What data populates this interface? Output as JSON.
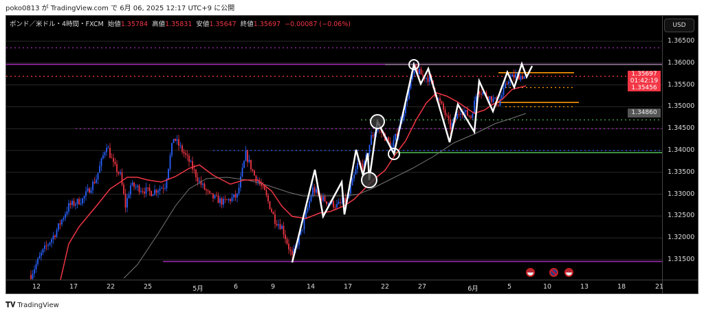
{
  "published": "poko0813 が TradingView.com で 6月 06, 2025 12:17 UTC+9 に公開",
  "legend": {
    "symbol": "ポンド／米ドル・4時間・FXCM",
    "open_label": "始値",
    "open": "1.35784",
    "high_label": "高値",
    "high": "1.35831",
    "low_label": "安値",
    "low": "1.35647",
    "close_label": "終値",
    "close": "1.35697",
    "change": "−0.00087 (−0.06%)"
  },
  "currency_button": "USD",
  "price_tag": {
    "price": "1.35697",
    "countdown": "01:42:19",
    "ma": "1.35456"
  },
  "ma_tag": "1.34860",
  "footer_logo": "TradingView",
  "colors": {
    "up": "#2962ff",
    "down": "#f23645",
    "ema": "#f23645",
    "sma": "#777777",
    "zigzag": "#ffffff",
    "purple": "#9c27b0",
    "orange": "#ff9800",
    "green": "#4caf50",
    "blue": "#2962ff"
  },
  "events": [
    "us-flag-icon",
    "uk-flag-icon",
    "us-flag-icon"
  ],
  "chart_data": {
    "type": "candlestick",
    "yaxis": {
      "min": 1.3115,
      "max": 1.3665,
      "ticks": [
        "1.36500",
        "1.36000",
        "1.35500",
        "1.35000",
        "1.34500",
        "1.34000",
        "1.33500",
        "1.33000",
        "1.32500",
        "1.32000",
        "1.31500"
      ]
    },
    "xaxis": {
      "ticks": [
        "12",
        "17",
        "22",
        "25",
        "5月",
        "6",
        "9",
        "14",
        "17",
        "22",
        "27",
        "6月",
        "5",
        "10",
        "13",
        "18",
        "21"
      ]
    },
    "grid": true,
    "price_path": [
      {
        "bar": 0,
        "price": 1.3115
      },
      {
        "bar": 6,
        "price": 1.3163
      },
      {
        "bar": 14,
        "price": 1.321
      },
      {
        "bar": 22,
        "price": 1.3273
      },
      {
        "bar": 30,
        "price": 1.3288
      },
      {
        "bar": 38,
        "price": 1.3336
      },
      {
        "bar": 44,
        "price": 1.3414
      },
      {
        "bar": 48,
        "price": 1.3367
      },
      {
        "bar": 52,
        "price": 1.3343
      },
      {
        "bar": 55,
        "price": 1.3273
      },
      {
        "bar": 58,
        "price": 1.332
      },
      {
        "bar": 64,
        "price": 1.3312
      },
      {
        "bar": 70,
        "price": 1.3304
      },
      {
        "bar": 78,
        "price": 1.332
      },
      {
        "bar": 83,
        "price": 1.343
      },
      {
        "bar": 87,
        "price": 1.3406
      },
      {
        "bar": 92,
        "price": 1.3375
      },
      {
        "bar": 98,
        "price": 1.3328
      },
      {
        "bar": 104,
        "price": 1.3296
      },
      {
        "bar": 112,
        "price": 1.3281
      },
      {
        "bar": 120,
        "price": 1.3296
      },
      {
        "bar": 125,
        "price": 1.3391
      },
      {
        "bar": 130,
        "price": 1.3343
      },
      {
        "bar": 136,
        "price": 1.3304
      },
      {
        "bar": 142,
        "price": 1.3241
      },
      {
        "bar": 146,
        "price": 1.3225
      },
      {
        "bar": 152,
        "price": 1.3155
      },
      {
        "bar": 158,
        "price": 1.3225
      },
      {
        "bar": 164,
        "price": 1.3312
      },
      {
        "bar": 170,
        "price": 1.3288
      },
      {
        "bar": 178,
        "price": 1.3273
      },
      {
        "bar": 184,
        "price": 1.3288
      },
      {
        "bar": 190,
        "price": 1.3367
      },
      {
        "bar": 194,
        "price": 1.3367
      },
      {
        "bar": 198,
        "price": 1.343
      },
      {
        "bar": 202,
        "price": 1.3453
      },
      {
        "bar": 206,
        "price": 1.343
      },
      {
        "bar": 210,
        "price": 1.3406
      },
      {
        "bar": 216,
        "price": 1.3477
      },
      {
        "bar": 220,
        "price": 1.354
      },
      {
        "bar": 223,
        "price": 1.3587
      },
      {
        "bar": 228,
        "price": 1.3571
      },
      {
        "bar": 232,
        "price": 1.3564
      },
      {
        "bar": 236,
        "price": 1.3524
      },
      {
        "bar": 240,
        "price": 1.3493
      },
      {
        "bar": 244,
        "price": 1.3453
      },
      {
        "bar": 250,
        "price": 1.3493
      },
      {
        "bar": 256,
        "price": 1.3477
      },
      {
        "bar": 260,
        "price": 1.354
      },
      {
        "bar": 266,
        "price": 1.3524
      },
      {
        "bar": 272,
        "price": 1.3508
      },
      {
        "bar": 278,
        "price": 1.3564
      },
      {
        "bar": 282,
        "price": 1.3571
      },
      {
        "bar": 287,
        "price": 1.35697
      }
    ],
    "levels": [
      {
        "price": 1.3635,
        "color": "purple",
        "style": "dotted"
      },
      {
        "price": 1.3597,
        "color": "purple",
        "style": "solid"
      },
      {
        "price": 1.35697,
        "color": "down",
        "style": "dotted"
      },
      {
        "price": 1.3578,
        "color": "orange",
        "style": "solid"
      },
      {
        "price": 1.3544,
        "color": "orange",
        "style": "dotted"
      },
      {
        "price": 1.351,
        "color": "orange",
        "style": "solid"
      },
      {
        "price": 1.35,
        "color": "orange",
        "style": "dotted"
      },
      {
        "price": 1.347,
        "color": "green",
        "style": "dotted"
      },
      {
        "price": 1.345,
        "color": "purple",
        "style": "dotted"
      },
      {
        "price": 1.34,
        "color": "blue",
        "style": "dotted"
      },
      {
        "price": 1.3395,
        "color": "green",
        "style": "solid"
      },
      {
        "price": 1.3146,
        "color": "purple",
        "style": "solid"
      }
    ]
  }
}
